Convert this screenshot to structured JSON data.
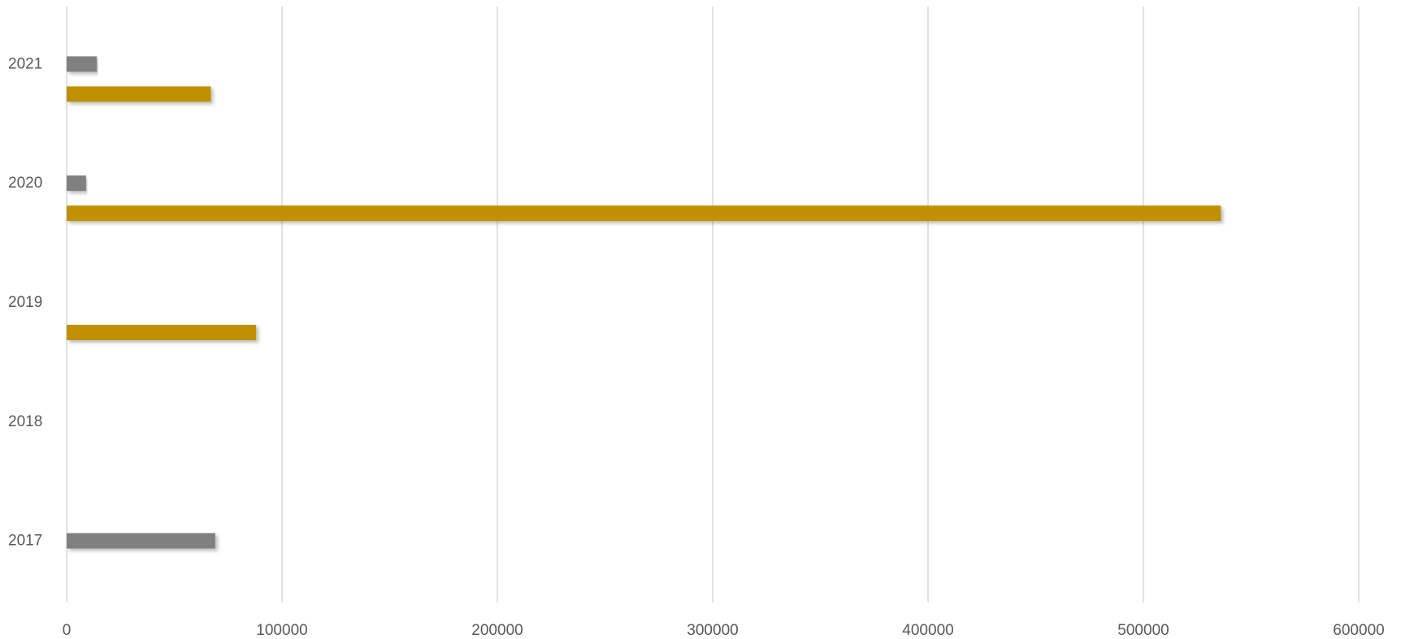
{
  "chart_data": {
    "type": "bar",
    "orientation": "horizontal",
    "categories": [
      "2017",
      "2018",
      "2019",
      "2020",
      "2021"
    ],
    "series": [
      {
        "color": "#C09000",
        "values": [
          null,
          null,
          88000,
          536000,
          67000
        ]
      },
      {
        "color": "#808080",
        "values": [
          69000,
          null,
          null,
          9000,
          14000
        ]
      }
    ],
    "xlim": [
      0,
      600000
    ],
    "xticks": [
      "0",
      "100000",
      "200000",
      "300000",
      "400000",
      "500000",
      "600000"
    ],
    "grid": "vertical",
    "legend": "none"
  }
}
